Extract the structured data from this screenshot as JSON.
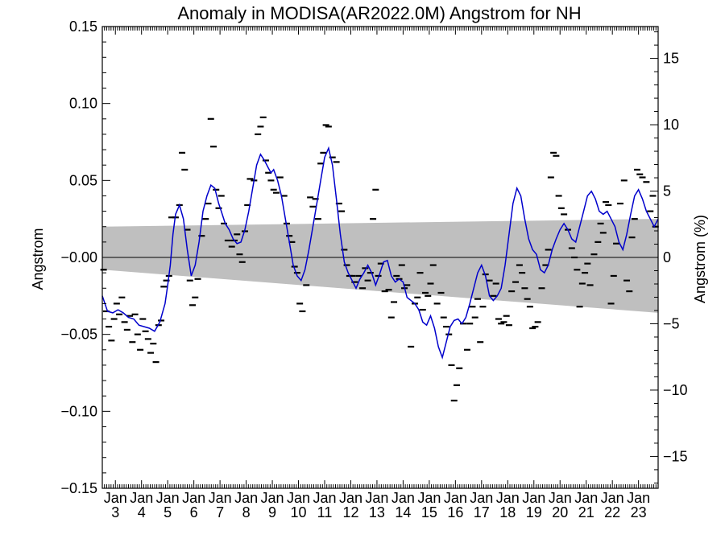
{
  "chart_data": {
    "type": "line",
    "title": "Anomaly in MODISA(AR2022.0M) Angstrom for NH",
    "ylabel": "Angstrom",
    "ylabel_right": "Angstrom (%)",
    "xlim": [
      2002.5,
      2023.75
    ],
    "ylim": [
      -0.15,
      0.15
    ],
    "ylim_right": [
      -17.4,
      17.4
    ],
    "yticks": [
      {
        "value": 0.15,
        "label": "0.15"
      },
      {
        "value": 0.1,
        "label": "0.10"
      },
      {
        "value": 0.05,
        "label": "0.05"
      },
      {
        "value": 0.0,
        "label": "-0.00"
      },
      {
        "value": -0.05,
        "label": "-0.05"
      },
      {
        "value": -0.1,
        "label": "-0.10"
      },
      {
        "value": -0.15,
        "label": "-0.15"
      }
    ],
    "yticks_right": [
      {
        "value": 15,
        "label": "15"
      },
      {
        "value": 10,
        "label": "10"
      },
      {
        "value": 5,
        "label": "5"
      },
      {
        "value": 0,
        "label": "0"
      },
      {
        "value": -5,
        "label": "-5"
      },
      {
        "value": -10,
        "label": "-10"
      },
      {
        "value": -15,
        "label": "-15"
      }
    ],
    "xticks": [
      {
        "value": 2003,
        "month": "Jan",
        "year": "3"
      },
      {
        "value": 2004,
        "month": "Jan",
        "year": "4"
      },
      {
        "value": 2005,
        "month": "Jan",
        "year": "5"
      },
      {
        "value": 2006,
        "month": "Jan",
        "year": "6"
      },
      {
        "value": 2007,
        "month": "Jan",
        "year": "7"
      },
      {
        "value": 2008,
        "month": "Jan",
        "year": "8"
      },
      {
        "value": 2009,
        "month": "Jan",
        "year": "9"
      },
      {
        "value": 2010,
        "month": "Jan",
        "year": "10"
      },
      {
        "value": 2011,
        "month": "Jan",
        "year": "11"
      },
      {
        "value": 2012,
        "month": "Jan",
        "year": "12"
      },
      {
        "value": 2013,
        "month": "Jan",
        "year": "13"
      },
      {
        "value": 2014,
        "month": "Jan",
        "year": "14"
      },
      {
        "value": 2015,
        "month": "Jan",
        "year": "15"
      },
      {
        "value": 2016,
        "month": "Jan",
        "year": "16"
      },
      {
        "value": 2017,
        "month": "Jan",
        "year": "17"
      },
      {
        "value": 2018,
        "month": "Jan",
        "year": "18"
      },
      {
        "value": 2019,
        "month": "Jan",
        "year": "19"
      },
      {
        "value": 2020,
        "month": "Jan",
        "year": "20"
      },
      {
        "value": 2021,
        "month": "Jan",
        "year": "21"
      },
      {
        "value": 2022,
        "month": "Jan",
        "year": "22"
      },
      {
        "value": 2023,
        "month": "Jan",
        "year": "23"
      }
    ],
    "band": {
      "color": "#bfbfbf",
      "x": [
        2002.5,
        2023.75
      ],
      "upper": [
        0.02,
        0.025
      ],
      "lower": [
        -0.008,
        -0.036
      ]
    },
    "zero_line": true,
    "grid": false,
    "colors": {
      "smoothed": "#0000cc",
      "monthly": "#000000",
      "band": "#bfbfbf"
    },
    "series": [
      {
        "style": "line",
        "x": [
          2002.5,
          2002.7,
          2002.9,
          2003.1,
          2003.3,
          2003.5,
          2003.7,
          2003.9,
          2004.1,
          2004.3,
          2004.5,
          2004.7,
          2004.9,
          2005.0,
          2005.1,
          2005.2,
          2005.3,
          2005.45,
          2005.6,
          2005.75,
          2005.9,
          2006.05,
          2006.2,
          2006.35,
          2006.5,
          2006.65,
          2006.8,
          2006.95,
          2007.05,
          2007.2,
          2007.35,
          2007.5,
          2007.65,
          2007.8,
          2007.95,
          2008.1,
          2008.25,
          2008.4,
          2008.55,
          2008.7,
          2008.85,
          2008.95,
          2009.05,
          2009.2,
          2009.35,
          2009.5,
          2009.65,
          2009.8,
          2009.95,
          2010.1,
          2010.25,
          2010.4,
          2010.55,
          2010.7,
          2010.85,
          2011.0,
          2011.15,
          2011.3,
          2011.45,
          2011.6,
          2011.75,
          2011.9,
          2012.05,
          2012.2,
          2012.35,
          2012.5,
          2012.65,
          2012.8,
          2012.95,
          2013.1,
          2013.25,
          2013.4,
          2013.55,
          2013.7,
          2013.85,
          2014.0,
          2014.15,
          2014.3,
          2014.45,
          2014.6,
          2014.75,
          2014.9,
          2015.05,
          2015.2,
          2015.35,
          2015.5,
          2015.65,
          2015.8,
          2015.95,
          2016.1,
          2016.25,
          2016.4,
          2016.55,
          2016.7,
          2016.85,
          2017.0,
          2017.15,
          2017.3,
          2017.45,
          2017.6,
          2017.75,
          2017.9,
          2018.05,
          2018.2,
          2018.35,
          2018.5,
          2018.65,
          2018.8,
          2018.95,
          2019.1,
          2019.25,
          2019.4,
          2019.55,
          2019.7,
          2019.85,
          2020.0,
          2020.15,
          2020.3,
          2020.45,
          2020.6,
          2020.75,
          2020.9,
          2021.05,
          2021.2,
          2021.35,
          2021.5,
          2021.65,
          2021.8,
          2021.95,
          2022.1,
          2022.25,
          2022.4,
          2022.55,
          2022.7,
          2022.85,
          2023.0,
          2023.15,
          2023.3,
          2023.45,
          2023.6,
          2023.75
        ],
        "y": [
          -0.025,
          -0.035,
          -0.036,
          -0.034,
          -0.036,
          -0.039,
          -0.04,
          -0.044,
          -0.045,
          -0.046,
          -0.048,
          -0.042,
          -0.03,
          -0.018,
          -0.005,
          0.015,
          0.028,
          0.034,
          0.025,
          0.005,
          -0.012,
          -0.005,
          0.01,
          0.03,
          0.04,
          0.047,
          0.045,
          0.035,
          0.03,
          0.022,
          0.018,
          0.012,
          0.009,
          0.01,
          0.018,
          0.03,
          0.045,
          0.06,
          0.067,
          0.063,
          0.058,
          0.055,
          0.057,
          0.05,
          0.04,
          0.025,
          0.01,
          -0.005,
          -0.012,
          -0.015,
          -0.008,
          0.005,
          0.02,
          0.035,
          0.05,
          0.065,
          0.071,
          0.06,
          0.038,
          0.015,
          -0.003,
          -0.01,
          -0.015,
          -0.02,
          -0.014,
          -0.01,
          -0.005,
          -0.01,
          -0.018,
          -0.011,
          -0.003,
          -0.002,
          -0.012,
          -0.016,
          -0.014,
          -0.016,
          -0.026,
          -0.028,
          -0.03,
          -0.034,
          -0.042,
          -0.044,
          -0.038,
          -0.046,
          -0.058,
          -0.065,
          -0.055,
          -0.045,
          -0.041,
          -0.04,
          -0.043,
          -0.039,
          -0.03,
          -0.02,
          -0.01,
          -0.005,
          -0.012,
          -0.025,
          -0.028,
          -0.025,
          -0.02,
          -0.005,
          0.015,
          0.035,
          0.045,
          0.04,
          0.025,
          0.012,
          0.005,
          0.002,
          -0.008,
          -0.01,
          -0.005,
          0.005,
          0.012,
          0.018,
          0.022,
          0.018,
          0.012,
          0.01,
          0.02,
          0.03,
          0.04,
          0.043,
          0.038,
          0.03,
          0.028,
          0.03,
          0.025,
          0.02,
          0.01,
          0.005,
          0.015,
          0.028,
          0.04,
          0.044,
          0.038,
          0.03,
          0.025,
          0.02,
          0.025
        ]
      },
      {
        "style": "dash",
        "x": [
          2002.55,
          2002.65,
          2002.75,
          2002.85,
          2002.95,
          2003.05,
          2003.15,
          2003.25,
          2003.35,
          2003.45,
          2003.55,
          2003.65,
          2003.75,
          2003.85,
          2003.95,
          2004.05,
          2004.15,
          2004.25,
          2004.35,
          2004.45,
          2004.55,
          2004.65,
          2004.75,
          2004.85,
          2004.95,
          2005.05,
          2005.15,
          2005.3,
          2005.45,
          2005.55,
          2005.65,
          2005.75,
          2005.85,
          2005.95,
          2006.05,
          2006.15,
          2006.3,
          2006.45,
          2006.55,
          2006.65,
          2006.75,
          2006.85,
          2006.95,
          2007.05,
          2007.15,
          2007.3,
          2007.45,
          2007.55,
          2007.65,
          2007.75,
          2007.85,
          2007.95,
          2008.05,
          2008.15,
          2008.3,
          2008.45,
          2008.55,
          2008.65,
          2008.75,
          2008.85,
          2008.95,
          2009.05,
          2009.15,
          2009.3,
          2009.45,
          2009.55,
          2009.65,
          2009.75,
          2009.85,
          2009.95,
          2010.05,
          2010.15,
          2010.3,
          2010.45,
          2010.55,
          2010.65,
          2010.75,
          2010.85,
          2010.95,
          2011.05,
          2011.15,
          2011.3,
          2011.45,
          2011.55,
          2011.65,
          2011.75,
          2011.85,
          2011.95,
          2012.05,
          2012.15,
          2012.3,
          2012.45,
          2012.55,
          2012.65,
          2012.75,
          2012.85,
          2012.95,
          2013.05,
          2013.15,
          2013.3,
          2013.45,
          2013.55,
          2013.65,
          2013.75,
          2013.85,
          2013.95,
          2014.05,
          2014.15,
          2014.3,
          2014.45,
          2014.55,
          2014.65,
          2014.75,
          2014.85,
          2014.95,
          2015.05,
          2015.15,
          2015.3,
          2015.45,
          2015.55,
          2015.65,
          2015.75,
          2015.85,
          2015.95,
          2016.05,
          2016.15,
          2016.3,
          2016.45,
          2016.55,
          2016.65,
          2016.75,
          2016.85,
          2016.95,
          2017.05,
          2017.15,
          2017.3,
          2017.45,
          2017.55,
          2017.65,
          2017.75,
          2017.85,
          2017.95,
          2018.05,
          2018.15,
          2018.3,
          2018.45,
          2018.55,
          2018.65,
          2018.75,
          2018.85,
          2018.95,
          2019.05,
          2019.15,
          2019.3,
          2019.45,
          2019.55,
          2019.65,
          2019.75,
          2019.85,
          2019.95,
          2020.05,
          2020.15,
          2020.3,
          2020.45,
          2020.55,
          2020.65,
          2020.75,
          2020.85,
          2020.95,
          2021.05,
          2021.15,
          2021.3,
          2021.45,
          2021.55,
          2021.65,
          2021.75,
          2021.85,
          2021.95,
          2022.05,
          2022.15,
          2022.3,
          2022.45,
          2022.55,
          2022.65,
          2022.75,
          2022.85,
          2022.95,
          2023.05,
          2023.15,
          2023.3,
          2023.45,
          2023.55,
          2023.65
        ],
        "y": [
          -0.008,
          -0.035,
          -0.045,
          -0.054,
          -0.04,
          -0.03,
          -0.037,
          -0.026,
          -0.042,
          -0.047,
          -0.038,
          -0.055,
          -0.037,
          -0.05,
          -0.06,
          -0.04,
          -0.048,
          -0.053,
          -0.062,
          -0.056,
          -0.068,
          -0.044,
          -0.041,
          -0.019,
          -0.015,
          -0.012,
          0.026,
          0.026,
          0.034,
          0.068,
          0.057,
          0.018,
          -0.015,
          -0.031,
          -0.026,
          -0.014,
          0.014,
          0.025,
          0.035,
          0.09,
          0.072,
          0.044,
          0.032,
          0.04,
          0.022,
          0.011,
          0.007,
          0.011,
          0.015,
          0.002,
          -0.003,
          0.017,
          0.034,
          0.051,
          0.05,
          0.08,
          0.085,
          0.091,
          0.063,
          0.055,
          0.05,
          0.044,
          0.042,
          0.052,
          0.04,
          0.022,
          0.014,
          0.01,
          -0.006,
          -0.01,
          -0.03,
          -0.035,
          -0.018,
          0.039,
          0.033,
          0.038,
          0.025,
          0.061,
          0.068,
          0.086,
          0.085,
          0.065,
          0.062,
          0.035,
          0.03,
          0.005,
          -0.005,
          -0.012,
          -0.012,
          -0.016,
          -0.012,
          -0.02,
          -0.007,
          -0.015,
          -0.01,
          0.025,
          0.044,
          -0.012,
          -0.004,
          -0.022,
          -0.021,
          -0.039,
          -0.029,
          -0.012,
          -0.014,
          -0.005,
          -0.02,
          -0.018,
          -0.058,
          -0.03,
          -0.026,
          -0.01,
          -0.034,
          -0.023,
          -0.025,
          -0.017,
          -0.005,
          -0.03,
          -0.023,
          -0.039,
          -0.045,
          -0.05,
          -0.07,
          -0.093,
          -0.083,
          -0.072,
          -0.043,
          -0.06,
          -0.043,
          -0.032,
          -0.039,
          -0.027,
          -0.055,
          -0.032,
          -0.011,
          -0.015,
          -0.025,
          -0.017,
          -0.04,
          -0.043,
          -0.042,
          -0.038,
          -0.044,
          -0.022,
          -0.016,
          -0.005,
          -0.01,
          -0.02,
          -0.027,
          -0.032,
          -0.046,
          -0.045,
          -0.042,
          -0.02,
          -0.005,
          0.005,
          0.052,
          0.068,
          0.066,
          0.04,
          0.032,
          0.028,
          0.018,
          0.006,
          0.0,
          -0.008,
          -0.032,
          -0.017,
          -0.01,
          -0.004,
          -0.018,
          0.002,
          0.01,
          0.022,
          0.016,
          0.036,
          0.034,
          -0.03,
          -0.012,
          0.009,
          0.035,
          0.05,
          -0.015,
          -0.022,
          0.013,
          0.025,
          0.057,
          0.054,
          0.052,
          0.049,
          0.03,
          0.04,
          0.02
        ]
      }
    ]
  }
}
